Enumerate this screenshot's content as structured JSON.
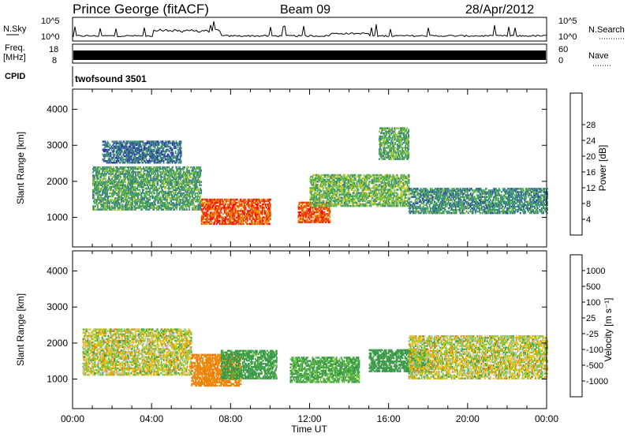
{
  "header": {
    "station": "Prince George (fitACF)",
    "beam": "Beam 09",
    "date": "28/Apr/2012"
  },
  "top_panels": {
    "nsky_label": "N.Sky",
    "nsky_ticks": [
      "10^5",
      "10^0"
    ],
    "nsearch_label": "N.Search",
    "freq_label_1": "Freq.",
    "freq_label_2": "[MHz]",
    "freq_ticks": [
      "18",
      "8"
    ],
    "nave_ticks": [
      "60",
      "0"
    ],
    "nave_label": "Nave",
    "cpid_label": "CPID",
    "cpid_value": "twofsound 3501"
  },
  "chart_data": [
    {
      "type": "heatmap",
      "name": "power",
      "ylabel": "Slant Range [km]",
      "xlabel": "",
      "xlim": [
        "00:00",
        "24:00"
      ],
      "ylim": [
        180,
        4560
      ],
      "yticks": [
        1000,
        2000,
        3000,
        4000
      ],
      "colorbar": {
        "label": "Power [dB]",
        "ticks": [
          "4",
          "8",
          "12",
          "16",
          "20",
          "24",
          "28"
        ],
        "colors": [
          "#0000ff",
          "#2b3fa0",
          "#3d7b8f",
          "#3ba35a",
          "#8fc43b",
          "#f2c200",
          "#f08c00",
          "#e04b00",
          "#ff0000"
        ]
      },
      "regions": [
        {
          "t": [
            1.0,
            6.5
          ],
          "r": [
            1200,
            2400
          ],
          "level": 12
        },
        {
          "t": [
            1.5,
            5.5
          ],
          "r": [
            2500,
            3100
          ],
          "level": 7
        },
        {
          "t": [
            6.5,
            10.0
          ],
          "r": [
            800,
            1500
          ],
          "level": 28
        },
        {
          "t": [
            11.4,
            13.0
          ],
          "r": [
            850,
            1400
          ],
          "level": 28
        },
        {
          "t": [
            12.0,
            17.0
          ],
          "r": [
            1300,
            2200
          ],
          "level": 14
        },
        {
          "t": [
            15.5,
            17.0
          ],
          "r": [
            2600,
            3500
          ],
          "level": 13
        },
        {
          "t": [
            17.0,
            24.0
          ],
          "r": [
            1100,
            1800
          ],
          "level": 10
        }
      ]
    },
    {
      "type": "heatmap",
      "name": "velocity",
      "ylabel": "Slant Range [km]",
      "xlabel": "Time UT",
      "xlim": [
        "00:00",
        "24:00"
      ],
      "ylim": [
        180,
        4560
      ],
      "xticks": [
        "00:00",
        "04:00",
        "08:00",
        "12:00",
        "16:00",
        "20:00",
        "00:00"
      ],
      "yticks": [
        1000,
        2000,
        3000,
        4000
      ],
      "colorbar": {
        "label": "Velocity [m s⁻¹]",
        "ticks": [
          "1000",
          "500",
          "100",
          "25",
          "-25",
          "-100",
          "-500",
          "-1000"
        ],
        "colors": [
          "#1f3fa8",
          "#2e7d8c",
          "#3a9a48",
          "#72c93a",
          "#c8c8c8",
          "#f0c000",
          "#f08000",
          "#ff3000",
          "#ff0000"
        ]
      },
      "regions": [
        {
          "t": [
            0.5,
            6.0
          ],
          "r": [
            1100,
            2400
          ],
          "value": 0
        },
        {
          "t": [
            6.0,
            8.5
          ],
          "r": [
            800,
            1700
          ],
          "value": -300
        },
        {
          "t": [
            7.5,
            10.3
          ],
          "r": [
            1000,
            1800
          ],
          "value": 200
        },
        {
          "t": [
            11.0,
            14.5
          ],
          "r": [
            900,
            1600
          ],
          "value": 150
        },
        {
          "t": [
            15.0,
            18.0
          ],
          "r": [
            1200,
            1800
          ],
          "value": 250
        },
        {
          "t": [
            17.0,
            24.0
          ],
          "r": [
            1000,
            2200
          ],
          "value": 0
        }
      ]
    }
  ]
}
